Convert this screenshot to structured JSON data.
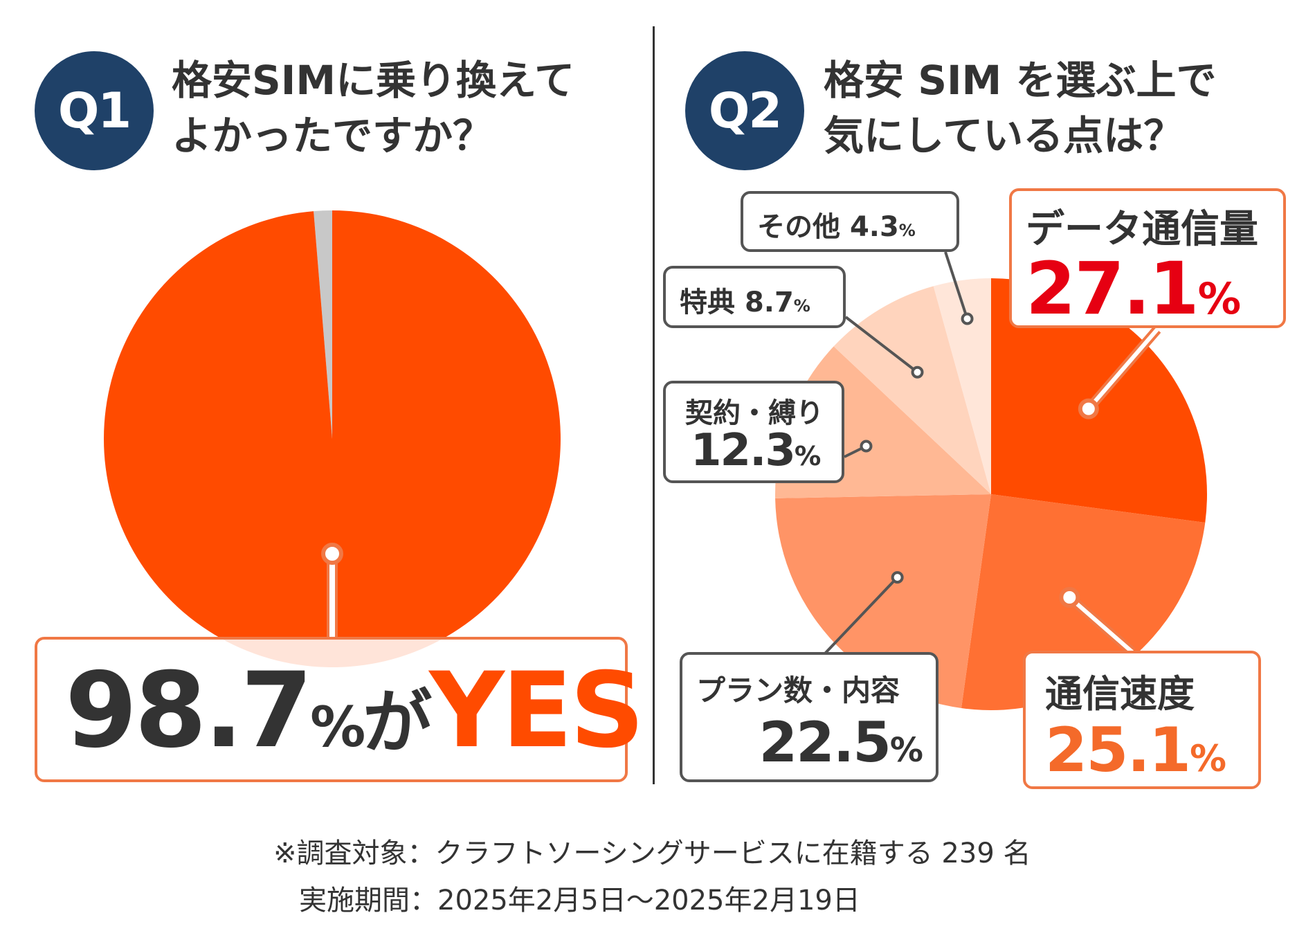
{
  "q1": {
    "badge": "Q1",
    "title_line1": "格安SIMに乗り換えて",
    "title_line2": "よかったですか？",
    "result_value": "98.7",
    "result_unit": "%",
    "result_mid": "が",
    "result_word": "YES"
  },
  "q2": {
    "badge": "Q2",
    "title_line1": "格安 SIM を選ぶ上で",
    "title_line2": "気にしている点は？"
  },
  "chart_data": [
    {
      "type": "pie",
      "title": "格安SIMに乗り換えてよかったですか？",
      "slices": [
        {
          "label": "YES",
          "value": 98.7,
          "color": "#ff4b00"
        },
        {
          "label": "",
          "value": 1.3,
          "color": "#c8c8c8"
        }
      ]
    },
    {
      "type": "pie",
      "title": "格安 SIM を選ぶ上で気にしている点は？",
      "slices": [
        {
          "label": "データ通信量",
          "value": 27.1,
          "display": "27.1",
          "unit": "%",
          "color": "#ff4b00"
        },
        {
          "label": "通信速度",
          "value": 25.1,
          "display": "25.1",
          "unit": "%",
          "color": "#ff7033"
        },
        {
          "label": "プラン数・内容",
          "value": 22.5,
          "display": "22.5",
          "unit": "%",
          "color": "#ff9466"
        },
        {
          "label": "契約・縛り",
          "value": 12.3,
          "display": "12.3",
          "unit": "%",
          "color": "#ffb894"
        },
        {
          "label": "特典",
          "value": 8.7,
          "display": "8.7",
          "unit": "%",
          "color": "#ffd4bd"
        },
        {
          "label": "その他",
          "value": 4.3,
          "display": "4.3",
          "unit": "%",
          "color": "#ffe6d9"
        }
      ]
    }
  ],
  "footer": {
    "line1": "※調査対象：クラフトソーシングサービスに在籍する 239 名",
    "line2": "実施期間：2025年2月5日～2025年2月19日"
  },
  "colors": {
    "badge": "#1f4168",
    "accent": "#ff4b00",
    "highlight_red": "#e60012",
    "text": "#333333"
  }
}
